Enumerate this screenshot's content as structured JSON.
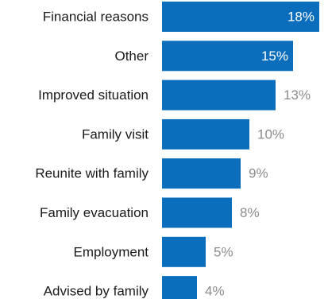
{
  "chart_data": {
    "type": "bar",
    "orientation": "horizontal",
    "categories": [
      "Financial reasons",
      "Other",
      "Improved situation",
      "Family visit",
      "Reunite with family",
      "Family evacuation",
      "Employment",
      "Advised by family"
    ],
    "values": [
      18,
      15,
      13,
      10,
      9,
      8,
      5,
      4
    ],
    "value_labels": [
      "18%",
      "15%",
      "13%",
      "10%",
      "9%",
      "8%",
      "5%",
      "4%"
    ],
    "unit": "%",
    "title": "",
    "xlabel": "",
    "ylabel": "",
    "xlim": [
      0,
      18
    ],
    "grid": false,
    "legend": "none",
    "colors": {
      "bar": "#0a6ebd",
      "label_inside": "#ffffff",
      "label_outside": "#8c8c8c",
      "category_text": "#1a1a1a"
    }
  }
}
